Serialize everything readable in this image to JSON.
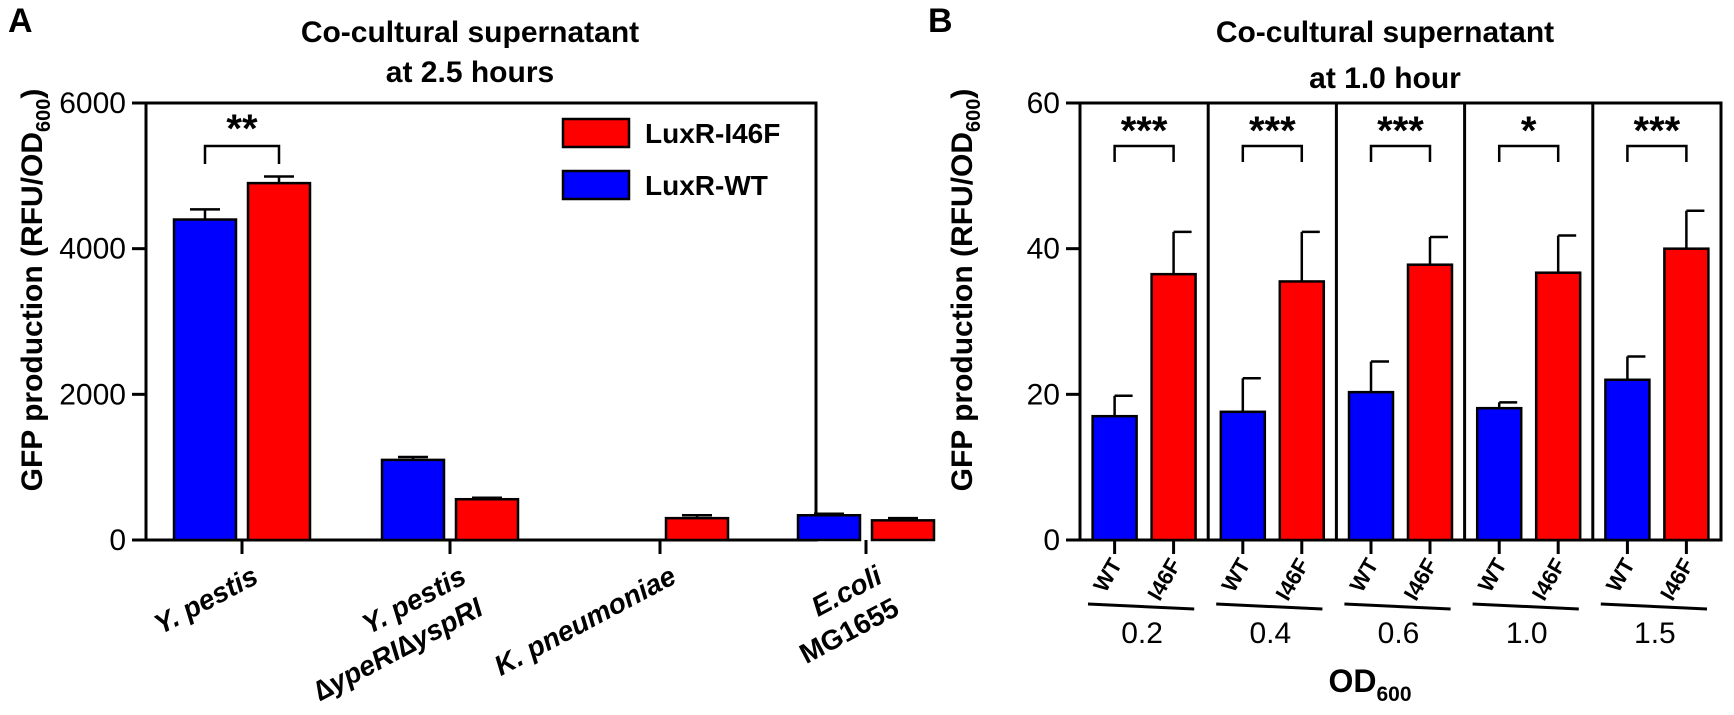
{
  "chart_data": [
    {
      "type": "bar",
      "panel_label": "A",
      "title_line1": "Co-cultural supernatant",
      "title_line2": "at 2.5 hours",
      "ylabel": "GFP production (RFU/OD",
      "ylabel_sub": "600",
      "ylabel_end": ")",
      "ylim": [
        0,
        6000
      ],
      "yticks": [
        "0",
        "2000",
        "4000",
        "6000"
      ],
      "ytick_values": [
        0,
        2000,
        4000,
        6000
      ],
      "categories": [
        {
          "line1": "Y. pestis",
          "line1_italic": true,
          "line2": "",
          "line2_italic": false
        },
        {
          "line1": "Y. pestis",
          "line1_italic": true,
          "line2": "∆ypeRI∆yspRI",
          "line2_italic": true
        },
        {
          "line1": "K. pneumoniae",
          "line1_italic": true,
          "line2": "",
          "line2_italic": false
        },
        {
          "line1": "E.coli",
          "line1_italic": true,
          "line2": "MG1655",
          "line2_italic": false
        }
      ],
      "series": [
        {
          "name": "LuxR-WT",
          "color": "#0000ff",
          "values": [
            4400,
            1100,
            0,
            340
          ],
          "errors": [
            140,
            40,
            0,
            20
          ]
        },
        {
          "name": "LuxR-I46F",
          "color": "#ff0000",
          "values": [
            4900,
            560,
            300,
            270
          ],
          "errors": [
            90,
            20,
            40,
            30
          ]
        }
      ],
      "legend": {
        "placement": "top-right",
        "order": [
          "LuxR-I46F",
          "LuxR-WT"
        ]
      },
      "significance": [
        {
          "category_index": 0,
          "label": "**"
        }
      ],
      "grid": false
    },
    {
      "type": "bar",
      "panel_label": "B",
      "title_line1": "Co-cultural supernatant",
      "title_line2": "at 1.0 hour",
      "ylabel": "GFP production (RFU/OD",
      "ylabel_sub": "600",
      "ylabel_end": ")",
      "xlabel": "OD",
      "xlabel_sub": "600",
      "ylim": [
        0,
        60
      ],
      "yticks": [
        "0",
        "20",
        "40",
        "60"
      ],
      "ytick_values": [
        0,
        20,
        40,
        60
      ],
      "bar_labels": [
        "WT",
        "I46F"
      ],
      "groups": [
        {
          "label": "0.2",
          "values": [
            17.0,
            36.5
          ],
          "errors": [
            2.8,
            5.8
          ],
          "significance": "***"
        },
        {
          "label": "0.4",
          "values": [
            17.6,
            35.5
          ],
          "errors": [
            4.6,
            6.8
          ],
          "significance": "***"
        },
        {
          "label": "0.6",
          "values": [
            20.3,
            37.8
          ],
          "errors": [
            4.2,
            3.8
          ],
          "significance": "***"
        },
        {
          "label": "1.0",
          "values": [
            18.1,
            36.7
          ],
          "errors": [
            0.8,
            5.1
          ],
          "significance": "*"
        },
        {
          "label": "1.5",
          "values": [
            22.0,
            40.0
          ],
          "errors": [
            3.2,
            5.2
          ],
          "significance": "***"
        }
      ],
      "colors": {
        "WT": "#0000ff",
        "I46F": "#ff0000"
      },
      "grid": false
    }
  ]
}
